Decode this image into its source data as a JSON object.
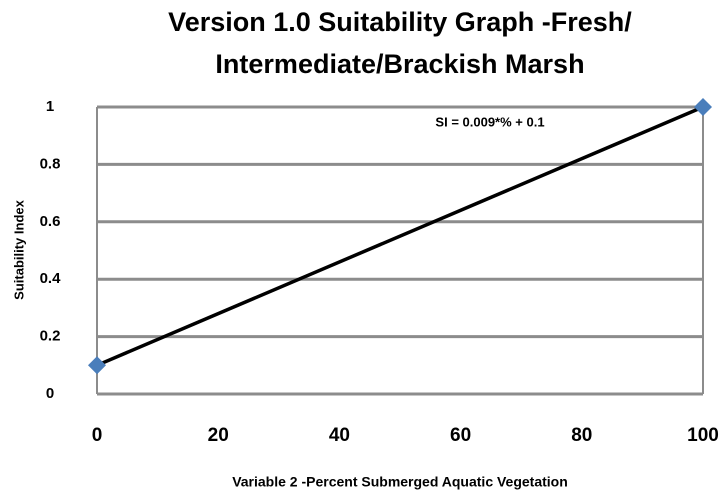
{
  "chart_data": {
    "type": "line",
    "title": [
      "Version 1.0 Suitability Graph -Fresh/",
      "Intermediate/Brackish Marsh"
    ],
    "annotation": "SI = 0.009*% + 0.1",
    "xlabel": "Variable 2 -Percent Submerged Aquatic Vegetation",
    "ylabel": "Suitability Index",
    "x": [
      0,
      100
    ],
    "series": [
      {
        "name": "SI",
        "color": "#000000",
        "marker_color": "#4a7ebb",
        "values": [
          0.1,
          1
        ]
      }
    ],
    "xlim": [
      0,
      100
    ],
    "xticks": [
      0,
      20,
      40,
      60,
      80,
      100
    ],
    "ylim": [
      0,
      1
    ],
    "yticks": [
      0,
      0.2,
      0.4,
      0.6,
      0.8,
      1
    ],
    "grid": true
  }
}
